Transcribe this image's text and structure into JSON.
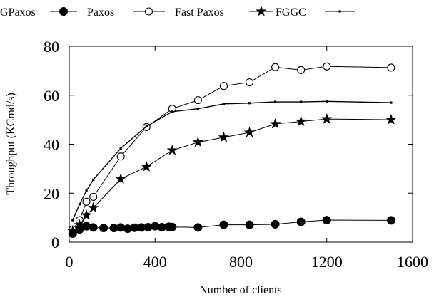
{
  "chart_data": {
    "type": "line",
    "title": "",
    "xlabel": "Number of clients",
    "ylabel": "Throughput (KCmd/s)",
    "xlim": [
      0,
      1600
    ],
    "ylim": [
      0,
      80
    ],
    "xticks": [
      0,
      400,
      800,
      1200,
      1600
    ],
    "yticks": [
      0,
      20,
      40,
      60,
      80
    ],
    "grid": false,
    "legend_position": "top",
    "series": [
      {
        "name": "GPaxos",
        "marker": "filled-circle",
        "x": [
          16,
          48,
          80,
          112,
          160,
          208,
          240,
          272,
          304,
          336,
          368,
          400,
          432,
          464,
          480,
          600,
          720,
          840,
          960,
          1080,
          1200,
          1500
        ],
        "y": [
          3.5,
          5.2,
          6.5,
          6.0,
          5.8,
          5.8,
          6.0,
          5.5,
          5.9,
          6.0,
          6.1,
          6.5,
          6.1,
          6.3,
          6.2,
          6.0,
          7.1,
          7.1,
          7.3,
          8.3,
          9.0,
          8.9
        ]
      },
      {
        "name": "Paxos",
        "marker": "open-circle",
        "x": [
          16,
          48,
          80,
          112,
          240,
          360,
          480,
          600,
          720,
          840,
          960,
          1080,
          1200,
          1500
        ],
        "y": [
          5.2,
          9.0,
          16.5,
          18.5,
          35.0,
          47.0,
          54.5,
          58.0,
          63.8,
          65.3,
          71.5,
          70.3,
          71.8,
          71.3
        ]
      },
      {
        "name": "Fast Paxos",
        "marker": "star",
        "x": [
          16,
          48,
          80,
          112,
          240,
          360,
          480,
          600,
          720,
          840,
          960,
          1080,
          1200,
          1500
        ],
        "y": [
          4.5,
          7.0,
          11.0,
          14.0,
          25.8,
          30.8,
          37.5,
          40.8,
          42.8,
          44.8,
          48.3,
          49.3,
          50.3,
          50.0
        ]
      },
      {
        "name": "FGGC",
        "marker": "dot",
        "x": [
          16,
          48,
          80,
          112,
          240,
          360,
          480,
          600,
          720,
          840,
          960,
          1080,
          1200,
          1500
        ],
        "y": [
          9.0,
          15.5,
          21.0,
          25.5,
          38.3,
          47.3,
          53.3,
          54.5,
          56.5,
          56.8,
          57.3,
          57.3,
          57.5,
          57.0
        ]
      }
    ]
  }
}
